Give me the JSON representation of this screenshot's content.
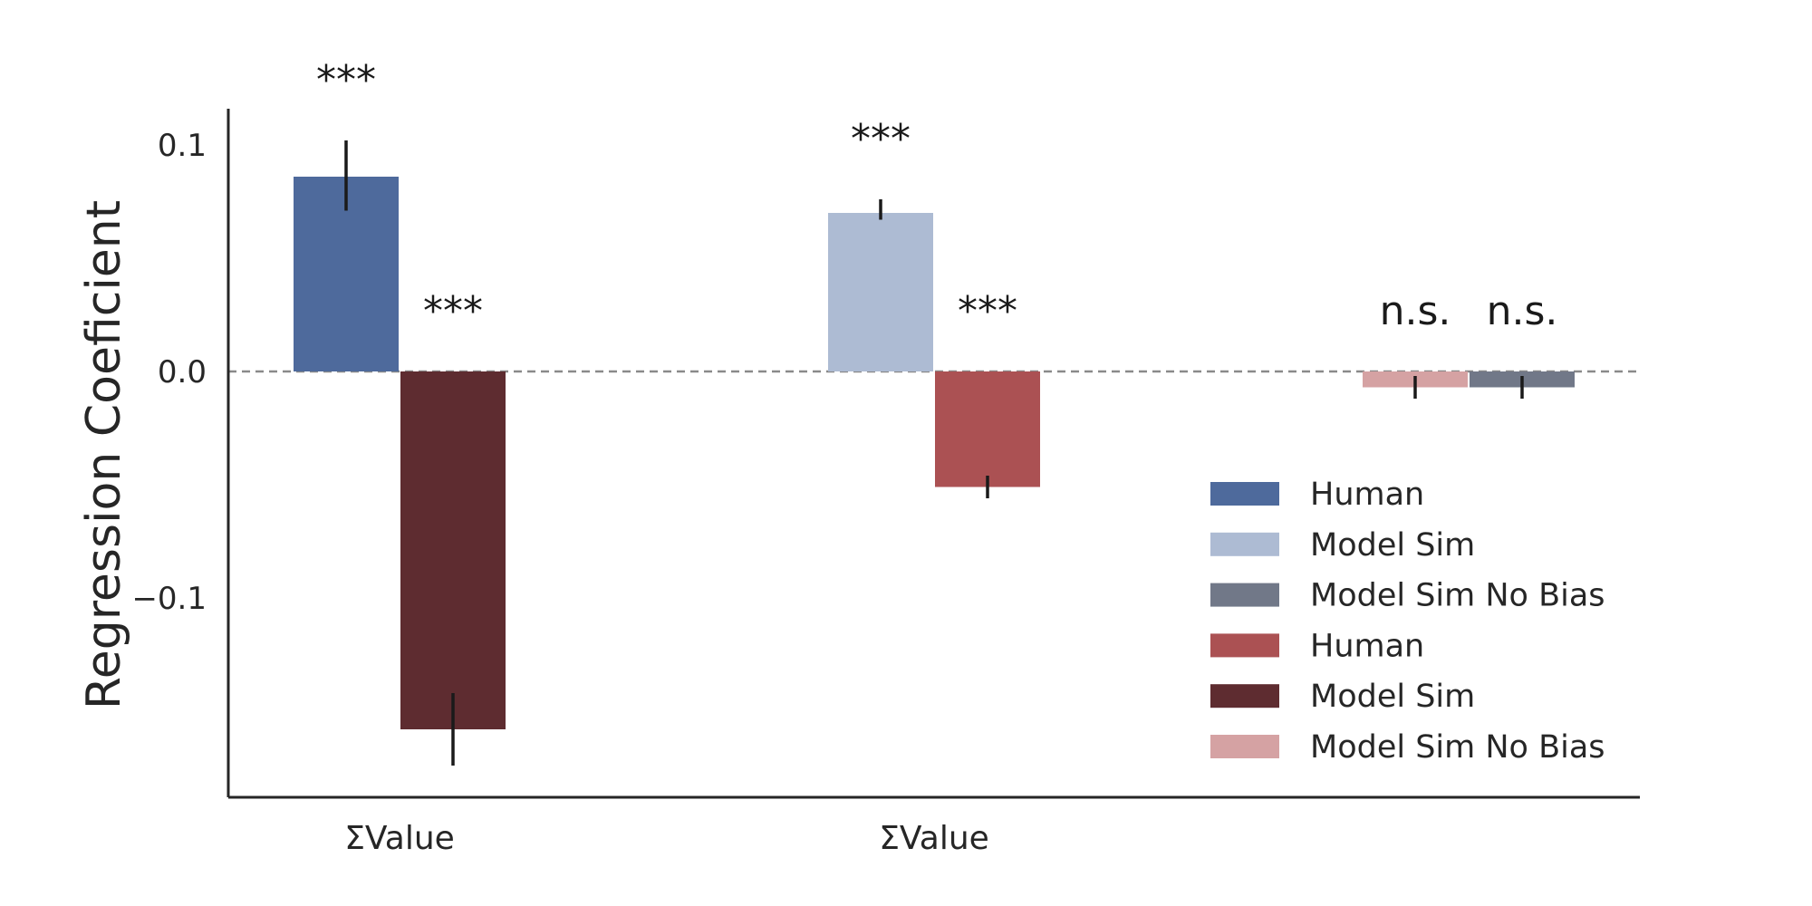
{
  "chart_data": {
    "type": "bar",
    "ylabel": "Regression Coeficient",
    "xlabel": "",
    "ylim": [
      -0.188,
      0.116
    ],
    "yticks": [
      {
        "value": 0.1,
        "label": "0.1"
      },
      {
        "value": 0.0,
        "label": "0.0"
      },
      {
        "value": -0.1,
        "label": "−0.1"
      }
    ],
    "zero_line": "dashed",
    "grid": false,
    "category_labels": [
      {
        "text": "ΣValue",
        "x": 0.5
      },
      {
        "text": "ΣValue",
        "x": 5.5
      }
    ],
    "bars": [
      {
        "series": 0,
        "x": 0,
        "value": 0.086,
        "err_lo": 0.071,
        "err_hi": 0.102,
        "annotation": "***"
      },
      {
        "series": 4,
        "x": 1,
        "value": -0.158,
        "err_lo": -0.174,
        "err_hi": -0.142,
        "annotation": "***"
      },
      {
        "series": 1,
        "x": 5,
        "value": 0.07,
        "err_lo": 0.067,
        "err_hi": 0.076,
        "annotation": "***"
      },
      {
        "series": 3,
        "x": 6,
        "value": -0.051,
        "err_lo": -0.056,
        "err_hi": -0.046,
        "annotation": "***"
      },
      {
        "series": 5,
        "x": 10,
        "value": -0.007,
        "err_lo": -0.012,
        "err_hi": -0.002,
        "annotation": "n.s."
      },
      {
        "series": 2,
        "x": 11,
        "value": -0.007,
        "err_lo": -0.012,
        "err_hi": -0.002,
        "annotation": "n.s."
      }
    ],
    "series": [
      {
        "name": "Human",
        "color": "#4e6a9c"
      },
      {
        "name": "Model Sim",
        "color": "#adbbd3"
      },
      {
        "name": "Model Sim No Bias",
        "color": "#717888"
      },
      {
        "name": "Human",
        "color": "#ab5153"
      },
      {
        "name": "Model Sim",
        "color": "#5e2c30"
      },
      {
        "name": "Model Sim No Bias",
        "color": "#d5a2a3"
      }
    ],
    "legend_position": "lower-right"
  }
}
